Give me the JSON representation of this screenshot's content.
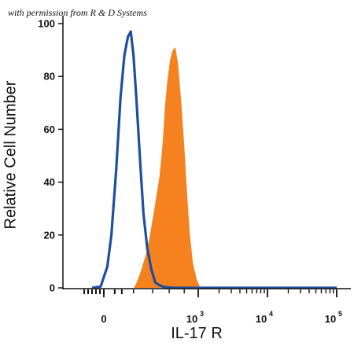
{
  "watermark": "with permission from R & D Systems",
  "chart_data": {
    "type": "area",
    "xlabel": "IL-17 R",
    "ylabel": "Relative Cell Number",
    "x_scale": "biexponential",
    "ylim": [
      0,
      100
    ],
    "y_ticks": [
      0,
      20,
      40,
      60,
      80,
      100
    ],
    "x_ticks": [
      {
        "value": 0,
        "label": "0",
        "exp": ""
      },
      {
        "value": 1000,
        "label": "10",
        "exp": "3"
      },
      {
        "value": 10000,
        "label": "10",
        "exp": "4"
      },
      {
        "value": 100000,
        "label": "10",
        "exp": "5"
      }
    ],
    "grid": false,
    "legend": "none",
    "colors": {
      "isotype": "#1f4e9e",
      "stained": "#f5821f",
      "axis": "#111111"
    },
    "series": [
      {
        "style": "outline",
        "color": "#1f4e9e",
        "points": [
          [
            -150,
            0
          ],
          [
            -40,
            0.5
          ],
          [
            -12,
            3
          ],
          [
            10,
            8
          ],
          [
            30,
            20
          ],
          [
            60,
            45
          ],
          [
            90,
            72
          ],
          [
            120,
            88
          ],
          [
            150,
            95
          ],
          [
            175,
            97
          ],
          [
            200,
            88
          ],
          [
            230,
            70
          ],
          [
            265,
            48
          ],
          [
            300,
            28
          ],
          [
            340,
            15
          ],
          [
            385,
            7
          ],
          [
            430,
            2
          ],
          [
            480,
            1
          ],
          [
            540,
            0.3
          ],
          [
            650,
            0
          ],
          [
            100000,
            0
          ]
        ]
      },
      {
        "style": "filled",
        "color": "#f5821f",
        "points": [
          [
            205,
            0
          ],
          [
            230,
            2
          ],
          [
            270,
            6
          ],
          [
            320,
            12
          ],
          [
            360,
            18
          ],
          [
            410,
            28
          ],
          [
            480,
            42
          ],
          [
            520,
            55
          ],
          [
            545,
            68
          ],
          [
            575,
            78
          ],
          [
            610,
            86
          ],
          [
            645,
            90
          ],
          [
            680,
            91
          ],
          [
            715,
            85
          ],
          [
            760,
            70
          ],
          [
            800,
            54
          ],
          [
            840,
            36
          ],
          [
            880,
            20
          ],
          [
            925,
            9
          ],
          [
            980,
            3
          ],
          [
            1050,
            0.5
          ],
          [
            1120,
            0
          ]
        ]
      }
    ]
  }
}
